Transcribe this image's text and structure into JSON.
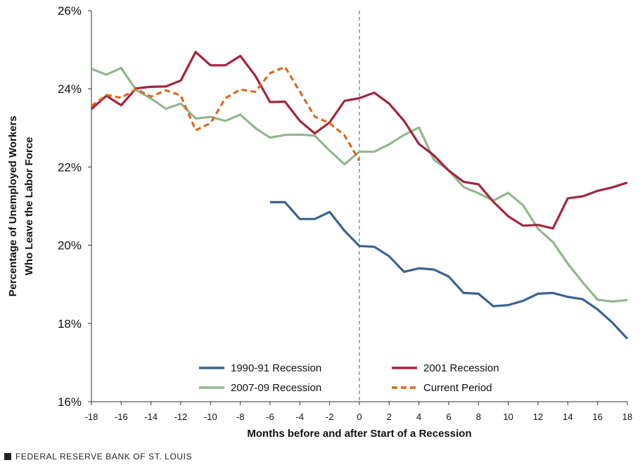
{
  "chart_data": {
    "type": "line",
    "xlabel": "Months before and after Start of a Recession",
    "ylabel": [
      "Percentage of Unemployed Workers",
      "Who Leave the Labor Force"
    ],
    "xlim": [
      -18,
      18
    ],
    "ylim": [
      16,
      26
    ],
    "x_ticks": [
      -18,
      -16,
      -14,
      -12,
      -10,
      -8,
      -6,
      -4,
      -2,
      0,
      2,
      4,
      6,
      8,
      10,
      12,
      14,
      16,
      18
    ],
    "y_ticks": [
      16,
      18,
      20,
      22,
      24,
      26
    ],
    "y_tick_labels": [
      "16%",
      "18%",
      "20%",
      "22%",
      "24%",
      "26%"
    ],
    "reference_line_x": 0,
    "series": [
      {
        "name": "1990-91 Recession",
        "color": "#3a6391",
        "dashed": false,
        "x": [
          -6,
          -5,
          -4,
          -3,
          -2,
          -1,
          0,
          1,
          2,
          3,
          4,
          5,
          6,
          7,
          8,
          9,
          10,
          11,
          12,
          13,
          14,
          15,
          16,
          17,
          18
        ],
        "values": [
          21.1,
          21.1,
          20.67,
          20.67,
          20.85,
          20.37,
          19.98,
          19.96,
          19.72,
          19.32,
          19.41,
          19.38,
          19.2,
          18.78,
          18.76,
          18.44,
          18.47,
          18.58,
          18.76,
          18.78,
          18.68,
          18.62,
          18.36,
          18.02,
          17.61
        ]
      },
      {
        "name": "2001 Recession",
        "color": "#a3243d",
        "dashed": false,
        "x": [
          -18,
          -17,
          -16,
          -15,
          -14,
          -13,
          -12,
          -11,
          -10,
          -9,
          -8,
          -7,
          -6,
          -5,
          -4,
          -3,
          -2,
          -1,
          0,
          1,
          2,
          3,
          4,
          5,
          6,
          7,
          8,
          9,
          10,
          11,
          12,
          13,
          14,
          15,
          16,
          17,
          18
        ],
        "values": [
          23.48,
          23.82,
          23.58,
          24.01,
          24.05,
          24.06,
          24.21,
          24.94,
          24.6,
          24.6,
          24.84,
          24.34,
          23.66,
          23.67,
          23.18,
          22.86,
          23.14,
          23.69,
          23.76,
          23.9,
          23.62,
          23.18,
          22.59,
          22.3,
          21.91,
          21.62,
          21.56,
          21.11,
          20.74,
          20.5,
          20.52,
          20.43,
          21.2,
          21.25,
          21.39,
          21.48,
          21.6
        ]
      },
      {
        "name": "2007-09 Recession",
        "color": "#92b68d",
        "dashed": false,
        "x": [
          -18,
          -17,
          -16,
          -15,
          -14,
          -13,
          -12,
          -11,
          -10,
          -9,
          -8,
          -7,
          -6,
          -5,
          -4,
          -3,
          -2,
          -1,
          0,
          1,
          2,
          3,
          4,
          5,
          6,
          7,
          8,
          9,
          10,
          11,
          12,
          13,
          14,
          15,
          16,
          17,
          18
        ],
        "values": [
          24.51,
          24.36,
          24.53,
          23.97,
          23.75,
          23.49,
          23.62,
          23.24,
          23.28,
          23.18,
          23.34,
          23.0,
          22.75,
          22.82,
          22.83,
          22.8,
          22.42,
          22.07,
          22.39,
          22.39,
          22.58,
          22.82,
          23.01,
          22.19,
          21.91,
          21.49,
          21.33,
          21.14,
          21.34,
          21.02,
          20.42,
          20.08,
          19.53,
          19.05,
          18.61,
          18.56,
          18.6
        ]
      },
      {
        "name": "Current Period",
        "color": "#d9691f",
        "dashed": true,
        "x": [
          -18,
          -17,
          -16,
          -15,
          -14,
          -13,
          -12,
          -11,
          -10,
          -9,
          -8,
          -7,
          -6,
          -5,
          -4,
          -3,
          -2,
          -1,
          0
        ],
        "values": [
          23.56,
          23.84,
          23.77,
          23.99,
          23.8,
          23.96,
          23.83,
          22.94,
          23.12,
          23.76,
          23.98,
          23.92,
          24.4,
          24.56,
          23.93,
          23.29,
          23.12,
          22.81,
          22.16
        ]
      }
    ]
  },
  "footer": {
    "text": "FEDERAL RESERVE BANK OF ST. LOUIS"
  }
}
